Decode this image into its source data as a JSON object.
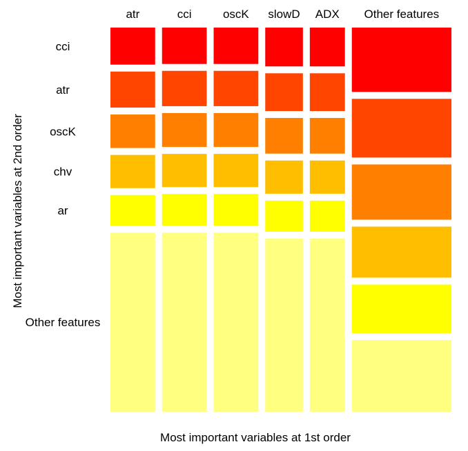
{
  "chart_data": {
    "type": "mosaic",
    "xlabel": "Most important variables at 1st order",
    "ylabel": "Most important variables at 2nd order",
    "x_categories": [
      "atr",
      "cci",
      "oscK",
      "slowD",
      "ADX",
      "Other features"
    ],
    "y_categories": [
      "cci",
      "atr",
      "oscK",
      "chv",
      "ar",
      "Other features"
    ],
    "colors": [
      "#ff0000",
      "#ff4500",
      "#ff8000",
      "#ffbf00",
      "#ffff00",
      "#ffff80"
    ],
    "columns": [
      {
        "name": "atr",
        "values": [
          0.106,
          0.103,
          0.096,
          0.095,
          0.088,
          0.512
        ]
      },
      {
        "name": "cci",
        "values": [
          0.104,
          0.101,
          0.097,
          0.095,
          0.091,
          0.512
        ]
      },
      {
        "name": "oscK",
        "values": [
          0.104,
          0.101,
          0.097,
          0.095,
          0.091,
          0.512
        ]
      },
      {
        "name": "slowD",
        "values": [
          0.111,
          0.108,
          0.102,
          0.095,
          0.089,
          0.495
        ]
      },
      {
        "name": "ADX",
        "values": [
          0.111,
          0.108,
          0.102,
          0.095,
          0.089,
          0.495
        ]
      },
      {
        "name": "Other features",
        "values": [
          0.184,
          0.168,
          0.158,
          0.146,
          0.139,
          0.205
        ]
      }
    ],
    "column_widths": [
      0.14,
      0.14,
      0.14,
      0.118,
      0.11,
      0.312
    ]
  }
}
